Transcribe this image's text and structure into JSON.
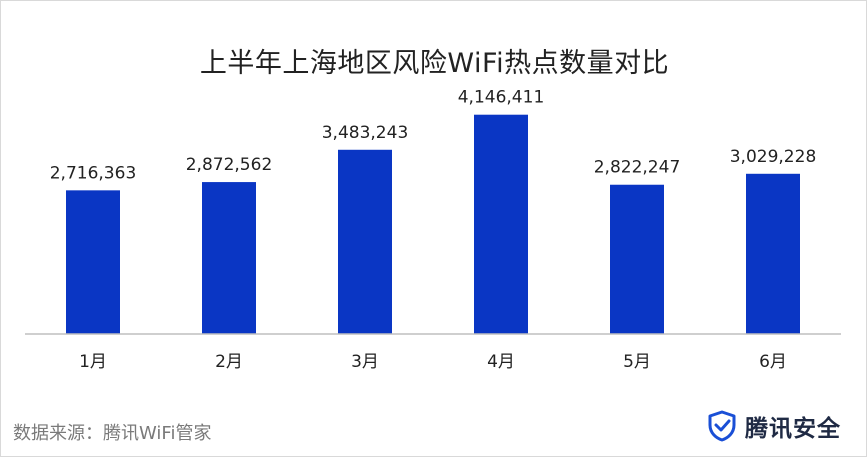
{
  "chart_data": {
    "type": "bar",
    "title": "上半年上海地区风险WiFi热点数量对比",
    "categories": [
      "1月",
      "2月",
      "3月",
      "4月",
      "5月",
      "6月"
    ],
    "values": [
      2716363,
      2872562,
      3483243,
      4146411,
      2822247,
      3029228
    ],
    "value_labels": [
      "2,716,363",
      "2,872,562",
      "3,483,243",
      "4,146,411",
      "2,822,247",
      "3,029,228"
    ],
    "xlabel": "",
    "ylabel": "",
    "ylim": [
      0,
      4500000
    ],
    "grid": false,
    "legend": "none",
    "bar_color": "#0a36c4"
  },
  "footer": {
    "source": "数据来源：腾讯WiFi管家",
    "logo_text": "腾讯安全",
    "logo_icon": "shield-check-icon"
  }
}
